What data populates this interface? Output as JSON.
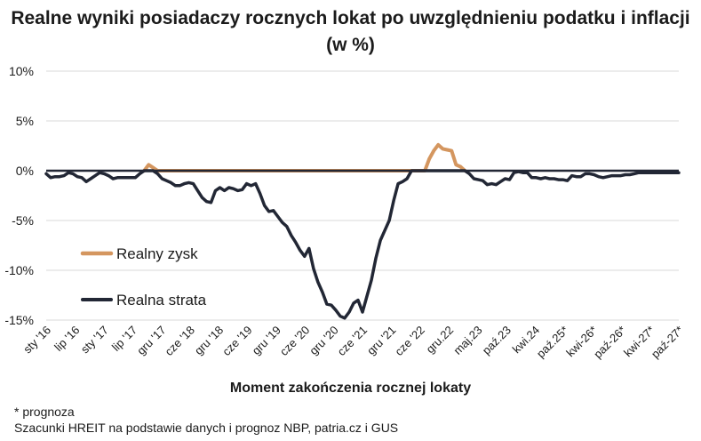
{
  "chart_data": {
    "type": "line",
    "title": "Realne wyniki posiadaczy rocznych lokat po uwzględnieniu podatku i inflacji (w %)",
    "xlabel": "Moment zakończenia rocznej lokaty",
    "ylabel": "",
    "ylim": [
      -15,
      10
    ],
    "yticks": [
      10,
      5,
      0,
      -5,
      -10,
      -15
    ],
    "ytick_labels": [
      "10%",
      "5%",
      "0%",
      "-5%",
      "-10%",
      "-15%"
    ],
    "grid": true,
    "legend_position": "lower-left",
    "xtick_labels": [
      "sty '16",
      "lip '16",
      "sty '17",
      "lip '17",
      "gru '17",
      "cze '18",
      "gru '18",
      "cze '19",
      "gru '19",
      "cze '20",
      "gru '20",
      "cze '21",
      "gru '21",
      "cze '22",
      "gru.22",
      "maj.23",
      "paź.23",
      "kwi.24",
      "paź.25*",
      "kwi-26*",
      "paź-26*",
      "kwi-27*",
      "paź-27*"
    ],
    "series": [
      {
        "name": "Realny zysk",
        "color": "#d4965f",
        "x": [
          22,
          23,
          24,
          25,
          85,
          86,
          87,
          88,
          89,
          90,
          91,
          92,
          93,
          94
        ],
        "values": [
          0.0,
          0.6,
          0.3,
          0.0,
          0.0,
          1.2,
          2.0,
          2.6,
          2.2,
          2.1,
          2.0,
          0.6,
          0.4,
          0.0
        ]
      },
      {
        "name": "Realna strata",
        "color": "#222735",
        "x": [
          0,
          1,
          2,
          3,
          4,
          5,
          6,
          7,
          8,
          9,
          10,
          11,
          12,
          13,
          14,
          15,
          16,
          17,
          18,
          19,
          20,
          21,
          22,
          23,
          24,
          25,
          26,
          27,
          28,
          29,
          30,
          31,
          32,
          33,
          34,
          35,
          36,
          37,
          38,
          39,
          40,
          41,
          42,
          43,
          44,
          45,
          46,
          47,
          48,
          49,
          50,
          51,
          52,
          53,
          54,
          55,
          56,
          57,
          58,
          59,
          60,
          61,
          62,
          63,
          64,
          65,
          66,
          67,
          68,
          69,
          70,
          71,
          72,
          73,
          74,
          75,
          76,
          77,
          78,
          79,
          80,
          81,
          82,
          83,
          84,
          85,
          86,
          87,
          88,
          89,
          90,
          91,
          92,
          93,
          94,
          95,
          96,
          97,
          98,
          99,
          100,
          101,
          102,
          103,
          104,
          105,
          106,
          107,
          108,
          109,
          110,
          111,
          112,
          113,
          114,
          115,
          116,
          117,
          118,
          119,
          120,
          121,
          122,
          123,
          124,
          125,
          126,
          127,
          128,
          129,
          130,
          131,
          132,
          133,
          134,
          135,
          136,
          137,
          138,
          139,
          140,
          141,
          142
        ],
        "values": [
          -0.3,
          -0.7,
          -0.6,
          -0.6,
          -0.5,
          -0.2,
          -0.3,
          -0.6,
          -0.7,
          -1.1,
          -0.8,
          -0.5,
          -0.2,
          -0.3,
          -0.5,
          -0.8,
          -0.7,
          -0.7,
          -0.7,
          -0.7,
          -0.7,
          -0.3,
          0.0,
          0.0,
          0.0,
          -0.3,
          -0.8,
          -1.0,
          -1.2,
          -1.5,
          -1.5,
          -1.3,
          -1.2,
          -1.3,
          -2.0,
          -2.7,
          -3.1,
          -3.2,
          -2.0,
          -1.7,
          -2.0,
          -1.7,
          -1.8,
          -2.0,
          -1.9,
          -1.3,
          -1.5,
          -1.3,
          -2.3,
          -3.5,
          -4.1,
          -4.0,
          -4.6,
          -5.2,
          -5.6,
          -6.5,
          -7.2,
          -8.0,
          -8.6,
          -7.8,
          -9.8,
          -11.2,
          -12.2,
          -13.4,
          -13.5,
          -14.0,
          -14.6,
          -14.8,
          -14.2,
          -13.3,
          -13.0,
          -14.2,
          -12.6,
          -11.0,
          -8.8,
          -7.0,
          -6.0,
          -5.0,
          -3.0,
          -1.3,
          -1.1,
          -0.8,
          0.0,
          0.0,
          0.0,
          0.0,
          0.0,
          0.0,
          0.0,
          0.0,
          0.0,
          0.0,
          0.0,
          0.0,
          0.0,
          -0.3,
          -0.8,
          -0.9,
          -1.0,
          -1.4,
          -1.3,
          -1.4,
          -1.1,
          -0.8,
          -0.9,
          -0.2,
          -0.1,
          -0.2,
          -0.2,
          -0.7,
          -0.7,
          -0.8,
          -0.7,
          -0.8,
          -0.8,
          -0.9,
          -0.9,
          -1.0,
          -0.5,
          -0.6,
          -0.6,
          -0.3,
          -0.3,
          -0.4,
          -0.6,
          -0.7,
          -0.6,
          -0.5,
          -0.5,
          -0.5,
          -0.4,
          -0.4,
          -0.3,
          -0.2,
          -0.2,
          -0.2,
          -0.2,
          -0.2,
          -0.2,
          -0.2,
          -0.2,
          -0.2,
          -0.2
        ]
      }
    ]
  },
  "footnote": "* prognoza",
  "source": "Szacunki HREIT na podstawie danych i prognoz NBP,  patria.cz  i GUS"
}
